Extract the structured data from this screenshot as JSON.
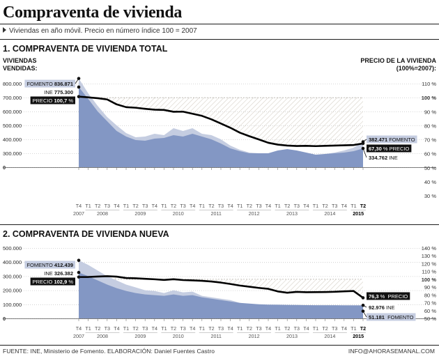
{
  "header": {
    "title": "Compraventa de vivienda",
    "subtitle": "Viviendas en año móvil. Precio en número índice 100 = 2007"
  },
  "footer": {
    "source": "FUENTE: INE, Ministerio de Fomento. ELABORACIÓN: Daniel Fuentes Castro",
    "contact": "INFO@AHORASEMANAL.COM"
  },
  "colors": {
    "fomento_area": "#c5cde1",
    "ine_area": "#8397c4",
    "price_line": "#000000",
    "hatch": "#d6d0c6"
  },
  "x_axis": {
    "ticks": [
      "T4",
      "T1",
      "T2",
      "T3",
      "T4",
      "T1",
      "T2",
      "T3",
      "T4",
      "T1",
      "T2",
      "T3",
      "T4",
      "T1",
      "T2",
      "T3",
      "T4",
      "T1",
      "T2",
      "T3",
      "T4",
      "T1",
      "T2",
      "T3",
      "T4",
      "T1",
      "T2",
      "T3",
      "T4",
      "T1",
      "T2"
    ],
    "years": [
      {
        "label": "2007",
        "from": 0,
        "to": 0
      },
      {
        "label": "2008",
        "from": 1,
        "to": 4
      },
      {
        "label": "2009",
        "from": 5,
        "to": 8
      },
      {
        "label": "2010",
        "from": 9,
        "to": 12
      },
      {
        "label": "2011",
        "from": 13,
        "to": 16
      },
      {
        "label": "2012",
        "from": 17,
        "to": 20
      },
      {
        "label": "2013",
        "from": 21,
        "to": 24
      },
      {
        "label": "2014",
        "from": 25,
        "to": 28
      },
      {
        "label": "2015",
        "from": 29,
        "to": 30
      }
    ]
  },
  "chart_data": [
    {
      "type": "area",
      "title": "1. COMPRAVENTA DE VIVIENDA TOTAL",
      "ylabel_left": "VIVIENDAS VENDIDAS:",
      "ylabel_right": "PRECIO DE LA VIVIENDA (100%=2007):",
      "left_ticks": [
        "800.000",
        "700.000",
        "600.000",
        "500.000",
        "400.000",
        "300.000",
        "0"
      ],
      "right_ticks": [
        "110 %",
        "100 %",
        "90 %",
        "80 %",
        "70 %",
        "60 %",
        "50 %",
        "40 %",
        "30 %"
      ],
      "left_scale": {
        "top_value": 800000,
        "step_value": 100000,
        "steps_to_zero": 6
      },
      "right_range": [
        30,
        110
      ],
      "series": [
        {
          "name": "FOMENTO",
          "axis": "left",
          "values": [
            836871,
            730000,
            640000,
            560000,
            500000,
            445000,
            415000,
            420000,
            440000,
            430000,
            480000,
            460000,
            480000,
            440000,
            430000,
            400000,
            355000,
            325000,
            305000,
            300000,
            300000,
            305000,
            310000,
            315000,
            300000,
            280000,
            295000,
            305000,
            320000,
            340000,
            382471
          ]
        },
        {
          "name": "INE",
          "axis": "left",
          "values": [
            775300,
            690000,
            600000,
            530000,
            460000,
            420000,
            395000,
            390000,
            405000,
            410000,
            430000,
            420000,
            440000,
            420000,
            400000,
            370000,
            335000,
            315000,
            300000,
            300000,
            300000,
            320000,
            330000,
            320000,
            305000,
            290000,
            295000,
            300000,
            305000,
            315000,
            334762
          ]
        },
        {
          "name": "PRECIO",
          "axis": "right",
          "values": [
            100.7,
            100.2,
            99.6,
            98.7,
            95.2,
            93.2,
            92.8,
            92.0,
            91.4,
            91.2,
            89.9,
            90.0,
            88.5,
            87.0,
            84.5,
            81.5,
            78.5,
            75.0,
            72.5,
            70.2,
            67.8,
            66.5,
            65.8,
            65.5,
            65.6,
            65.4,
            65.6,
            65.8,
            66.0,
            66.2,
            67.3
          ]
        }
      ],
      "hatch_reference": 100,
      "labels": {
        "fomento_start_name": "FOMENTO",
        "fomento_start_value": "836.871",
        "ine_start_name": "INE",
        "ine_start_value": "775.300",
        "price_start_name": "PRECIO",
        "price_start_value": "100,7",
        "fomento_end_value": "382.471",
        "fomento_end_name": "FOMENTO",
        "price_end_value": "67,30",
        "price_end_name": "PRECIO",
        "ine_end_value": "334.762",
        "ine_end_name": "INE",
        "percent_sign": "%"
      }
    },
    {
      "type": "area",
      "title": "2. COMPRAVENTA DE VIVIENDA NUEVA",
      "left_ticks": [
        "500.000",
        "400.000",
        "300.000",
        "200.000",
        "100.000",
        "0"
      ],
      "right_ticks": [
        "140 %",
        "130 %",
        "120 %",
        "110 %",
        "100 %",
        "90 %",
        "80 %",
        "70 %",
        "60 %",
        "50 %"
      ],
      "left_scale": {
        "top_value": 500000,
        "step_value": 100000,
        "steps_to_zero": 5
      },
      "right_range": [
        50,
        140
      ],
      "series": [
        {
          "name": "FOMENTO",
          "axis": "left",
          "values": [
            412439,
            380000,
            340000,
            300000,
            270000,
            240000,
            220000,
            200000,
            195000,
            180000,
            200000,
            185000,
            190000,
            160000,
            150000,
            140000,
            130000,
            110000,
            100000,
            95000,
            90000,
            85000,
            70000,
            65000,
            60000,
            55000,
            55000,
            54000,
            53000,
            52000,
            51181
          ]
        },
        {
          "name": "INE",
          "axis": "left",
          "values": [
            326382,
            300000,
            270000,
            240000,
            215000,
            195000,
            180000,
            170000,
            165000,
            160000,
            170000,
            160000,
            165000,
            150000,
            140000,
            130000,
            120000,
            110000,
            105000,
            100000,
            98000,
            97000,
            96000,
            95000,
            94000,
            93500,
            93500,
            93200,
            93100,
            93000,
            92976
          ]
        },
        {
          "name": "PRECIO",
          "axis": "right",
          "values": [
            102.9,
            103.0,
            103.5,
            104.0,
            103.4,
            101.6,
            101.3,
            100.6,
            100.0,
            99.2,
            100.1,
            99.0,
            98.6,
            98.1,
            97.2,
            95.8,
            94.0,
            92.0,
            90.5,
            89.0,
            87.8,
            84.5,
            82.8,
            83.9,
            83.5,
            83.6,
            83.7,
            84.0,
            84.6,
            85.0,
            76.3
          ]
        }
      ],
      "hatch_reference": 100,
      "labels": {
        "fomento_start_name": "FOMENTO",
        "fomento_start_value": "412.439",
        "ine_start_name": "INE",
        "ine_start_value": "326.382",
        "price_start_name": "PRECIO",
        "price_start_value": "102,9",
        "price_end_value": "76,3",
        "price_end_name": "PRECIO",
        "ine_end_value": "92.976",
        "ine_end_name": "INE",
        "fomento_end_value": "51.181",
        "fomento_end_name": "FOMENTO",
        "percent_sign": "%"
      }
    }
  ]
}
